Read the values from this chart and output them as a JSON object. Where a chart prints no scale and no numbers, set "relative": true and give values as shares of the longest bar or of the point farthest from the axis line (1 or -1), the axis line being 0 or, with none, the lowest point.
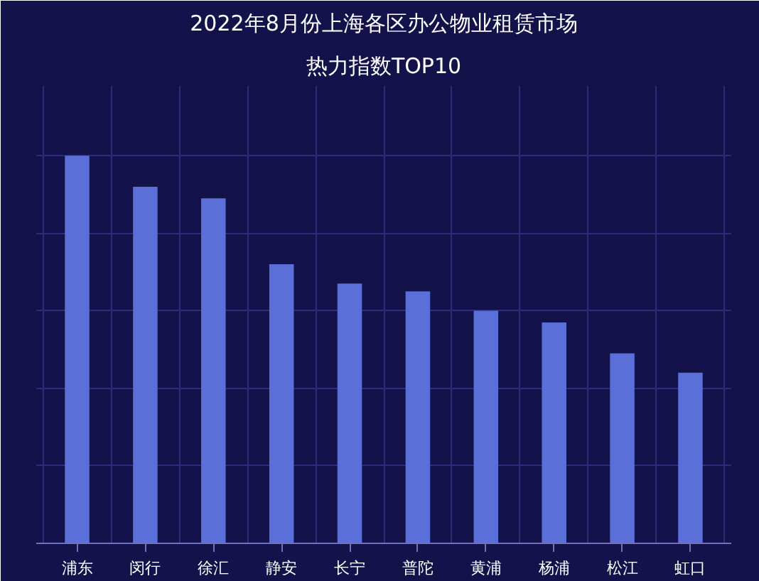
{
  "chart_data": {
    "type": "bar",
    "title": "2022年8月份上海各区办公物业租赁市场",
    "subtitle": "热力指数TOP10",
    "categories": [
      "浦东",
      "闵行",
      "徐汇",
      "静安",
      "长宁",
      "普陀",
      "黄浦",
      "杨浦",
      "松江",
      "虹口"
    ],
    "values": [
      1,
      0.92,
      0.89,
      0.72,
      0.67,
      0.65,
      0.6,
      0.57,
      0.49,
      0.44
    ],
    "color": "#5a6fd8",
    "relative": true,
    "grid": true
  }
}
